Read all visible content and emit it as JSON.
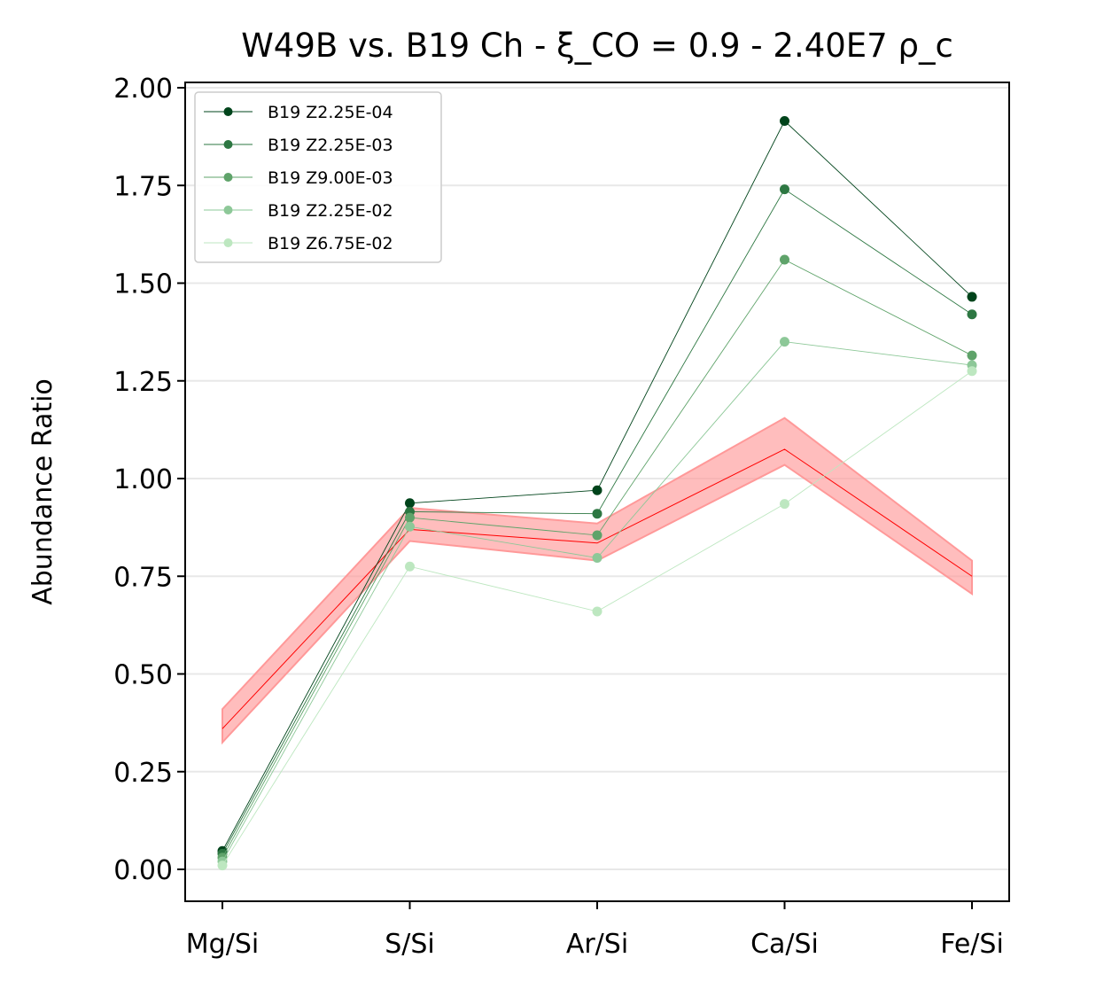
{
  "chart_data": {
    "type": "line",
    "title": "W49B vs. B19 Ch - ξ_CO = 0.9 - 2.40E7 ρ_c",
    "xlabel": "",
    "ylabel": "Abundance Ratio",
    "categories": [
      "Mg/Si",
      "S/Si",
      "Ar/Si",
      "Ca/Si",
      "Fe/Si"
    ],
    "ylim": [
      -0.08,
      2.02
    ],
    "yticks": [
      "0.00",
      "0.25",
      "0.50",
      "0.75",
      "1.00",
      "1.25",
      "1.50",
      "1.75",
      "2.00"
    ],
    "grid": "horizontal",
    "legend_position": "top-left",
    "observed": {
      "color": "#ff0000",
      "band_color": "#ff9999",
      "values": [
        0.36,
        0.87,
        0.835,
        1.075,
        0.75
      ],
      "lower": [
        0.325,
        0.84,
        0.79,
        1.035,
        0.705
      ],
      "upper": [
        0.41,
        0.925,
        0.885,
        1.155,
        0.79
      ]
    },
    "series": [
      {
        "name": "B19 Z2.25E-04",
        "color": "#00441b",
        "values": [
          0.047,
          0.937,
          0.97,
          1.915,
          1.465
        ]
      },
      {
        "name": "B19 Z2.25E-03",
        "color": "#2d7742",
        "values": [
          0.04,
          0.915,
          0.91,
          1.74,
          1.42
        ]
      },
      {
        "name": "B19 Z9.00E-03",
        "color": "#5fa36a",
        "values": [
          0.03,
          0.9,
          0.855,
          1.56,
          1.315
        ]
      },
      {
        "name": "B19 Z2.25E-02",
        "color": "#8dc898",
        "values": [
          0.02,
          0.877,
          0.797,
          1.35,
          1.29
        ]
      },
      {
        "name": "B19 Z6.75E-02",
        "color": "#bde7c0",
        "values": [
          0.01,
          0.775,
          0.66,
          0.935,
          1.275
        ]
      }
    ]
  }
}
